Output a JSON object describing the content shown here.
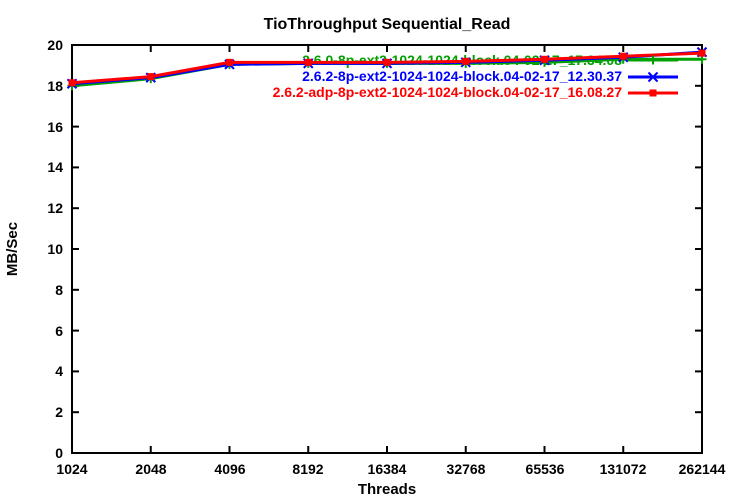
{
  "title": "TioThroughput Sequential_Read",
  "colors": {
    "background": "#ffffff",
    "axis": "#000000",
    "series_green": "#00a000",
    "series_blue": "#0000ff",
    "series_red": "#ff0000"
  },
  "yticks": [
    "0",
    "2",
    "4",
    "6",
    "8",
    "10",
    "12",
    "14",
    "16",
    "18",
    "20"
  ],
  "chart_data": {
    "type": "line",
    "title": "TioThroughput Sequential_Read",
    "xlabel": "Threads",
    "ylabel": "MB/Sec",
    "x_scale": "log2-categorical",
    "grid": false,
    "legend_position": "top-right-inside",
    "ylim": [
      0,
      20
    ],
    "ytick_step": 2,
    "categories": [
      1024,
      2048,
      4096,
      8192,
      16384,
      32768,
      65536,
      131072,
      262144
    ],
    "series": [
      {
        "name": "2.6.0-8p-ext2-1024-1024-block.04-02-17_17.34.08",
        "color": "#00a000",
        "marker": "plus",
        "values": [
          18.0,
          18.35,
          19.05,
          19.1,
          19.1,
          19.1,
          19.15,
          19.3,
          19.3
        ]
      },
      {
        "name": "2.6.2-8p-ext2-1024-1024-block.04-02-17_12.30.37",
        "color": "#0000ff",
        "marker": "x",
        "values": [
          18.1,
          18.4,
          19.05,
          19.1,
          19.1,
          19.15,
          19.25,
          19.4,
          19.65
        ]
      },
      {
        "name": "2.6.2-adp-8p-ext2-1024-1024-block.04-02-17_16.08.27",
        "color": "#ff0000",
        "marker": "square",
        "values": [
          18.15,
          18.45,
          19.15,
          19.15,
          19.15,
          19.2,
          19.3,
          19.45,
          19.6
        ]
      }
    ]
  }
}
